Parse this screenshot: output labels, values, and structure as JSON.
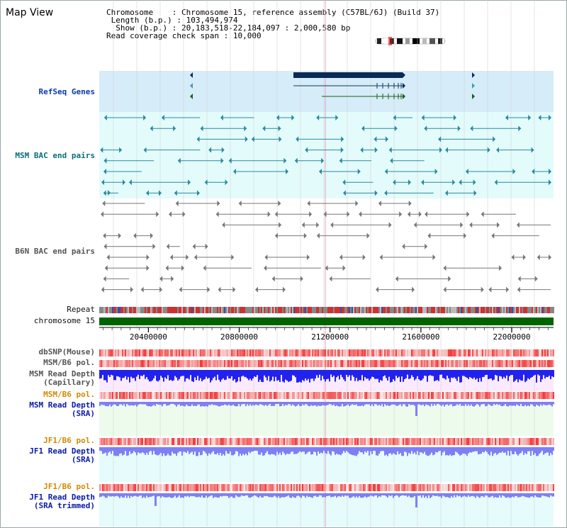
{
  "title": "Map View",
  "info": {
    "chromosome_label": "Chromosome",
    "chromosome_value": "Chromosome 15, reference assembly (C57BL/6J) (Build 37)",
    "length_label": "Length (b.p.)",
    "length_value": "103,494,974",
    "show_label": "Show (b.p.)",
    "show_value": "20,183,518-22,184,097 : 2,000,580 bp",
    "coverage_label": "Read coverage check span",
    "coverage_value": "10,000"
  },
  "tracks": {
    "refseq": "RefSeq Genes",
    "msm_bac": "MSM BAC end pairs",
    "b6n_bac": "B6N BAC end pairs",
    "repeat": "Repeat",
    "chromosome": "chromosome 15",
    "dbsnp": "dbSNP(Mouse)",
    "msm_b6_pol": "MSM/B6 pol.",
    "msm_depth_cap_1": "MSM Read Depth",
    "msm_depth_cap_2": "(Capillary)",
    "msm_b6_pol_2": "MSM/B6 pol.",
    "msm_depth_sra_1": "MSM Read Depth",
    "msm_depth_sra_2": "(SRA)",
    "jf1_b6_pol": "JF1/B6 pol.",
    "jf1_depth_sra_1": "JF1 Read Depth",
    "jf1_depth_sra_2": "(SRA)",
    "jf1_b6_pol_2": "JF1/B6 pol.",
    "jf1_depth_trim_1": "JF1 Read Depth",
    "jf1_depth_trim_2": "(SRA trimmed)"
  },
  "axis": {
    "ticks": [
      "20400000",
      "20800000",
      "21200000",
      "21600000",
      "22000000"
    ],
    "range": [
      20183518,
      22184097
    ]
  },
  "colors": {
    "gene_band": "#d6ecf8",
    "bac_band": "#e4fbfb",
    "chromosome_bar": "#006400",
    "depth_blue": "#2222ee",
    "depth_light": "#7f7ff5",
    "pol_red": "#e83030",
    "grid": "#cccccc",
    "center_line": "#e8a0c0"
  }
}
